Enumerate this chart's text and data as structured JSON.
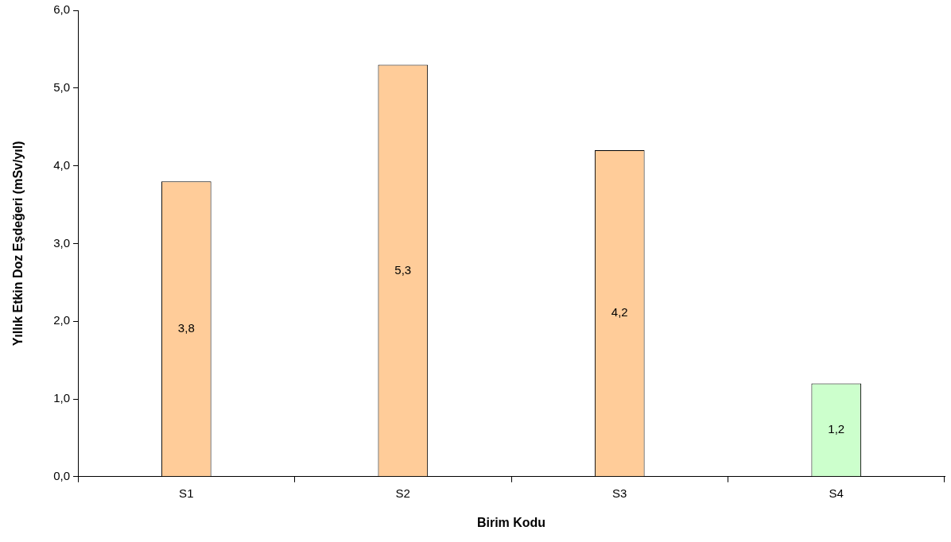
{
  "chart_data": {
    "type": "bar",
    "xlabel": "Birim Kodu",
    "ylabel": "Yıllık Etkin Doz Eşdeğeri (mSv/yıl)",
    "categories": [
      "S1",
      "S2",
      "S3",
      "S4"
    ],
    "values": [
      3.8,
      5.3,
      4.2,
      1.2
    ],
    "colors": [
      "#ffcc99",
      "#ffcc99",
      "#ffcc99",
      "#ccffcc"
    ],
    "value_labels": [
      "3,8",
      "5,3",
      "4,2",
      "1,2"
    ],
    "ylim": [
      0,
      6
    ],
    "yticks": [
      {
        "value": 0,
        "label": "0,0"
      },
      {
        "value": 1,
        "label": "1,0"
      },
      {
        "value": 2,
        "label": "2,0"
      },
      {
        "value": 3,
        "label": "3,0"
      },
      {
        "value": 4,
        "label": "4,0"
      },
      {
        "value": 5,
        "label": "5,0"
      },
      {
        "value": 6,
        "label": "6,0"
      }
    ],
    "grid": false,
    "legend": false
  }
}
